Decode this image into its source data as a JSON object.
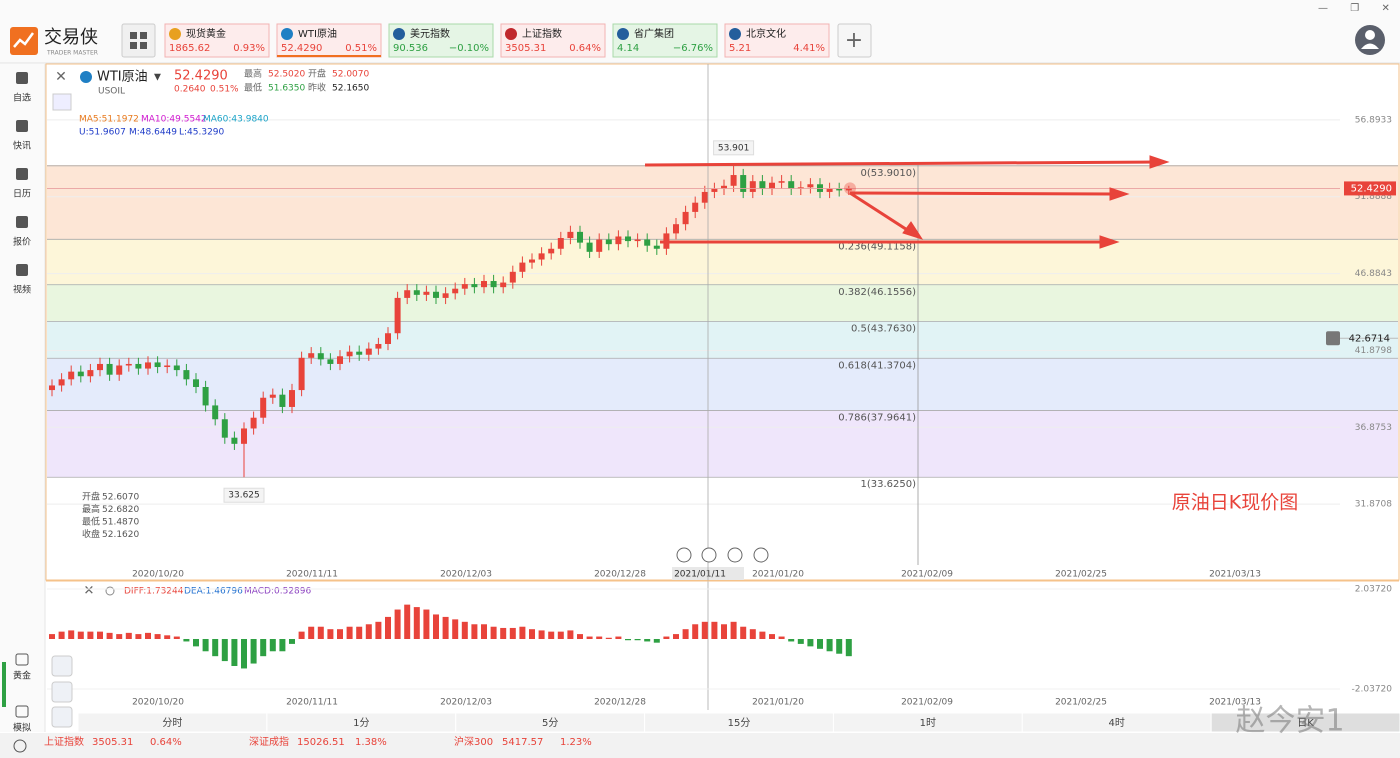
{
  "app": {
    "logo": "交易侠",
    "logo_sub": "TRADER MASTER"
  },
  "tickers": [
    {
      "name": "现货黄金",
      "price": "1865.62",
      "change": "0.93%"
    },
    {
      "name": "WTI原油",
      "price": "52.4290",
      "change": "0.51%"
    },
    {
      "name": "美元指数",
      "price": "90.536",
      "change": "−0.10%"
    },
    {
      "name": "上证指数",
      "price": "3505.31",
      "change": "0.64%"
    },
    {
      "name": "省广集团",
      "price": "4.14",
      "change": "−6.76%"
    },
    {
      "name": "北京文化",
      "price": "5.21",
      "change": "4.41%"
    }
  ],
  "sidebar": [
    "自选",
    "快讯",
    "日历",
    "报价",
    "视频"
  ],
  "sidebar_bottom": [
    "黄金",
    "模拟"
  ],
  "chart_data": {
    "type": "candlestick",
    "symbol": "WTI原油",
    "code": "USOIL",
    "price": "52.4290",
    "change": "0.2640",
    "change_pct": "0.51%",
    "stats": [
      {
        "label": "最高",
        "value": "52.5020"
      },
      {
        "label": "开盘",
        "value": "52.0070"
      },
      {
        "label": "最低",
        "value": "51.6350"
      },
      {
        "label": "昨收",
        "value": "52.1650"
      }
    ],
    "ma_legend": [
      "MA5:51.1972",
      "MA10:49.5542",
      "MA60:43.9840"
    ],
    "boll_legend": [
      "U:51.9607",
      "M:48.6449",
      "L:45.3290"
    ],
    "ohlc_panel": [
      {
        "label": "开盘",
        "value": "52.6070"
      },
      {
        "label": "最高",
        "value": "52.6820"
      },
      {
        "label": "最低",
        "value": "51.4870"
      },
      {
        "label": "收盘",
        "value": "52.1620"
      }
    ],
    "ohlc": [
      [
        39.3,
        40.0,
        38.9,
        39.6
      ],
      [
        39.6,
        40.4,
        39.2,
        40.0
      ],
      [
        40.0,
        40.9,
        39.6,
        40.5
      ],
      [
        40.5,
        40.9,
        39.8,
        40.2
      ],
      [
        40.2,
        41.0,
        39.8,
        40.6
      ],
      [
        40.6,
        41.4,
        40.2,
        41.0
      ],
      [
        41.0,
        41.4,
        39.9,
        40.3
      ],
      [
        40.3,
        41.3,
        39.9,
        40.9
      ],
      [
        40.9,
        41.4,
        40.5,
        41.0
      ],
      [
        41.0,
        41.4,
        40.3,
        40.7
      ],
      [
        40.7,
        41.5,
        40.3,
        41.1
      ],
      [
        41.1,
        41.5,
        40.4,
        40.8
      ],
      [
        40.8,
        41.3,
        40.4,
        40.9
      ],
      [
        40.9,
        41.3,
        40.2,
        40.6
      ],
      [
        40.6,
        41.0,
        39.6,
        40.0
      ],
      [
        40.0,
        40.4,
        39.1,
        39.5
      ],
      [
        39.5,
        39.9,
        37.9,
        38.3
      ],
      [
        38.3,
        38.7,
        37.0,
        37.4
      ],
      [
        37.4,
        37.8,
        35.8,
        36.2
      ],
      [
        36.2,
        36.6,
        35.4,
        35.8
      ],
      [
        35.8,
        37.2,
        33.625,
        36.8
      ],
      [
        36.8,
        37.9,
        36.4,
        37.5
      ],
      [
        37.5,
        39.2,
        37.1,
        38.8
      ],
      [
        38.8,
        39.4,
        38.4,
        39.0
      ],
      [
        39.0,
        39.4,
        37.8,
        38.2
      ],
      [
        38.2,
        39.7,
        37.8,
        39.3
      ],
      [
        39.3,
        41.8,
        38.9,
        41.4
      ],
      [
        41.4,
        42.1,
        41.0,
        41.7
      ],
      [
        41.7,
        42.1,
        40.9,
        41.3
      ],
      [
        41.3,
        41.7,
        40.6,
        41.0
      ],
      [
        41.0,
        41.9,
        40.6,
        41.5
      ],
      [
        41.5,
        42.2,
        41.1,
        41.8
      ],
      [
        41.8,
        42.2,
        41.2,
        41.6
      ],
      [
        41.6,
        42.4,
        41.2,
        42.0
      ],
      [
        42.0,
        42.7,
        41.6,
        42.3
      ],
      [
        42.3,
        43.4,
        41.9,
        43.0
      ],
      [
        43.0,
        45.7,
        42.6,
        45.3
      ],
      [
        45.3,
        46.2,
        44.9,
        45.8
      ],
      [
        45.8,
        46.2,
        45.1,
        45.5
      ],
      [
        45.5,
        46.1,
        45.1,
        45.7
      ],
      [
        45.7,
        46.1,
        44.9,
        45.3
      ],
      [
        45.3,
        46.0,
        44.9,
        45.6
      ],
      [
        45.6,
        46.3,
        45.2,
        45.9
      ],
      [
        45.9,
        46.6,
        45.5,
        46.2
      ],
      [
        46.2,
        46.6,
        45.6,
        46.0
      ],
      [
        46.0,
        46.8,
        45.6,
        46.4
      ],
      [
        46.4,
        46.8,
        45.6,
        46.0
      ],
      [
        46.0,
        46.7,
        45.6,
        46.3
      ],
      [
        46.3,
        47.4,
        45.9,
        47.0
      ],
      [
        47.0,
        48.0,
        46.6,
        47.6
      ],
      [
        47.6,
        48.2,
        47.2,
        47.8
      ],
      [
        47.8,
        48.6,
        47.4,
        48.2
      ],
      [
        48.2,
        48.9,
        47.8,
        48.5
      ],
      [
        48.5,
        49.6,
        48.1,
        49.2
      ],
      [
        49.2,
        50.0,
        48.8,
        49.6
      ],
      [
        49.6,
        50.0,
        48.5,
        48.9
      ],
      [
        48.9,
        49.3,
        47.9,
        48.3
      ],
      [
        48.3,
        49.5,
        47.9,
        49.1
      ],
      [
        49.1,
        49.5,
        48.4,
        48.8
      ],
      [
        48.8,
        49.7,
        48.4,
        49.3
      ],
      [
        49.3,
        49.7,
        48.6,
        49.0
      ],
      [
        49.0,
        49.5,
        48.6,
        49.1
      ],
      [
        49.1,
        49.5,
        48.3,
        48.7
      ],
      [
        48.7,
        49.1,
        48.1,
        48.5
      ],
      [
        48.5,
        49.9,
        48.1,
        49.5
      ],
      [
        49.5,
        50.5,
        49.1,
        50.1
      ],
      [
        50.1,
        51.3,
        49.7,
        50.9
      ],
      [
        50.9,
        51.9,
        50.5,
        51.5
      ],
      [
        51.5,
        52.6,
        51.1,
        52.2
      ],
      [
        52.2,
        52.8,
        51.8,
        52.4
      ],
      [
        52.4,
        53.0,
        52.0,
        52.6
      ],
      [
        52.6,
        53.901,
        52.2,
        53.3
      ],
      [
        53.3,
        53.7,
        51.8,
        52.2
      ],
      [
        52.2,
        53.3,
        51.8,
        52.9
      ],
      [
        52.9,
        53.3,
        52.0,
        52.4
      ],
      [
        52.4,
        53.2,
        52.0,
        52.8
      ],
      [
        52.8,
        53.3,
        52.4,
        52.9
      ],
      [
        52.9,
        53.3,
        52.0,
        52.4
      ],
      [
        52.4,
        52.9,
        52.0,
        52.5
      ],
      [
        52.5,
        53.1,
        52.1,
        52.7
      ],
      [
        52.7,
        53.1,
        51.8,
        52.2
      ],
      [
        52.2,
        52.8,
        51.8,
        52.4
      ],
      [
        52.4,
        52.8,
        51.9,
        52.3
      ],
      [
        52.3,
        52.6,
        52.0,
        52.43
      ]
    ],
    "up_color": "#e8433a",
    "down_color": "#2ea043",
    "ylim": [
      27.91,
      60.53
    ],
    "yticks": [
      31.8708,
      36.8753,
      41.8798,
      46.8843,
      51.8888,
      56.8933
    ],
    "high_label": 53.901,
    "low_label": 33.625,
    "fib": [
      {
        "label": "0(53.9010)",
        "price": 53.901
      },
      {
        "label": "0.236(49.1158)",
        "price": 49.1158
      },
      {
        "label": "0.382(46.1556)",
        "price": 46.1556
      },
      {
        "label": "0.5(43.7630)",
        "price": 43.763
      },
      {
        "label": "0.618(41.3704)",
        "price": 41.3704
      },
      {
        "label": "0.786(37.9641)",
        "price": 37.9641
      },
      {
        "label": "1(33.6250)",
        "price": 33.625
      }
    ],
    "last_price": {
      "value": 52.429,
      "label": "52.4290"
    },
    "alert_price": 42.6714,
    "x_labels": [
      "2020/10/20",
      "2020/11/11",
      "2020/12/03",
      "2020/12/28",
      "2021/01/20",
      "2021/02/09",
      "2021/02/25",
      "2021/03/13"
    ],
    "crosshair_date": "2021/01/11",
    "caption": "原油日K现价图",
    "macd": {
      "legend": [
        "DIFF:1.73244",
        "DEA:1.46796",
        "MACD:0.52896"
      ],
      "values": [
        0.2,
        0.3,
        0.35,
        0.3,
        0.3,
        0.3,
        0.25,
        0.2,
        0.25,
        0.2,
        0.25,
        0.2,
        0.15,
        0.1,
        -0.1,
        -0.3,
        -0.5,
        -0.7,
        -0.9,
        -1.1,
        -1.2,
        -1.0,
        -0.7,
        -0.5,
        -0.5,
        -0.2,
        0.3,
        0.5,
        0.5,
        0.4,
        0.4,
        0.5,
        0.5,
        0.6,
        0.7,
        0.9,
        1.2,
        1.4,
        1.3,
        1.2,
        1.0,
        0.9,
        0.8,
        0.7,
        0.6,
        0.6,
        0.5,
        0.45,
        0.45,
        0.5,
        0.4,
        0.35,
        0.3,
        0.3,
        0.35,
        0.2,
        0.1,
        0.1,
        0.05,
        0.1,
        -0.05,
        -0.05,
        -0.1,
        -0.15,
        0.1,
        0.2,
        0.4,
        0.6,
        0.7,
        0.7,
        0.6,
        0.7,
        0.5,
        0.4,
        0.3,
        0.2,
        0.1,
        -0.1,
        -0.2,
        -0.3,
        -0.4,
        -0.5,
        -0.6,
        -0.7
      ],
      "ylim": [
        -2.689,
        2.2
      ],
      "yticks": [
        {
          "value": 2.0372,
          "label": "2.03720"
        },
        {
          "value": -2.0372,
          "label": "-2.03720"
        }
      ]
    }
  },
  "timeframes": [
    "分时",
    "1分",
    "5分",
    "15分",
    "1时",
    "4时",
    "日K"
  ],
  "status": [
    {
      "name": "上证指数",
      "price": "3505.31",
      "change": "0.64%"
    },
    {
      "name": "深证成指",
      "price": "15026.51",
      "change": "1.38%"
    },
    {
      "name": "沪深300",
      "price": "5417.57",
      "change": "1.23%"
    }
  ],
  "watermark": "赵今安1"
}
